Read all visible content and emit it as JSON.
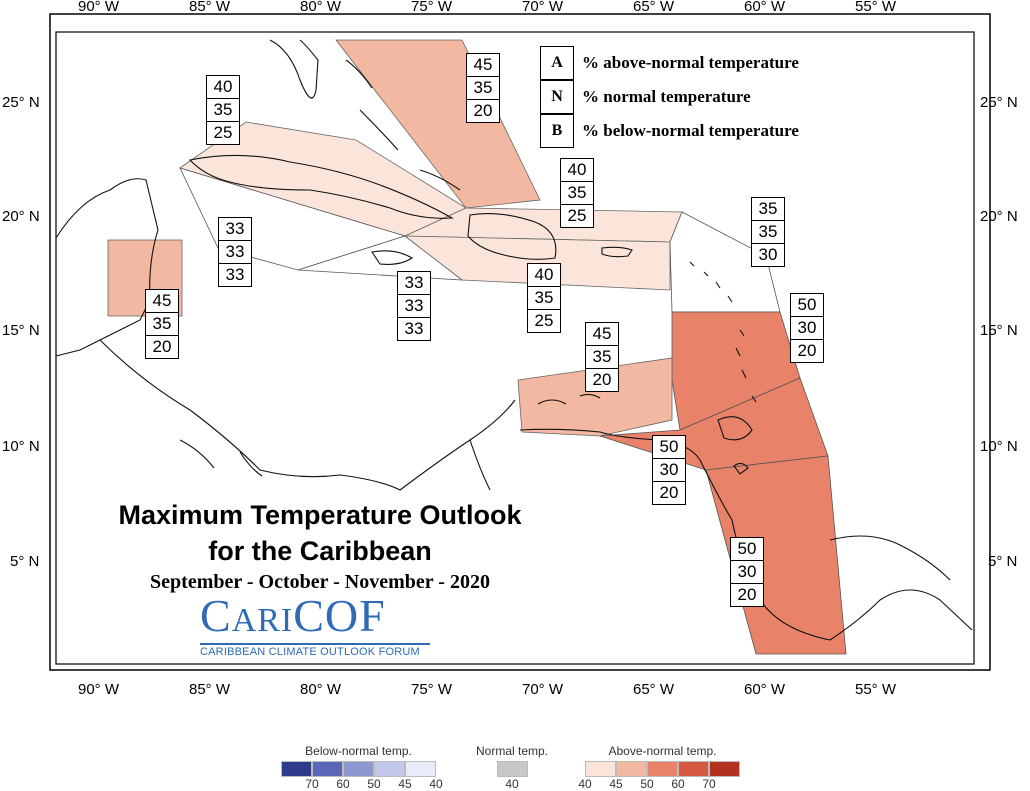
{
  "map": {
    "axis": {
      "lon_labels": [
        "90° W",
        "85° W",
        "80° W",
        "75° W",
        "70° W",
        "65° W",
        "60° W",
        "55° W"
      ],
      "lat_labels": [
        "25° N",
        "20° N",
        "15° N",
        "10° N",
        "5° N"
      ]
    },
    "key": [
      {
        "letter": "A",
        "text": "% above-normal temperature"
      },
      {
        "letter": "N",
        "text": "% normal temperature"
      },
      {
        "letter": "B",
        "text": "% below-normal temperature"
      }
    ],
    "regions": [
      {
        "name": "bahamas",
        "A": 45,
        "N": 35,
        "B": 20,
        "color": "#f2b8a1"
      },
      {
        "name": "cuba",
        "A": 40,
        "N": 35,
        "B": 25,
        "color": "#fbe5db"
      },
      {
        "name": "belize",
        "A": 45,
        "N": 35,
        "B": 20,
        "color": "#f2b8a1"
      },
      {
        "name": "cayman",
        "A": 33,
        "N": 33,
        "B": 33,
        "color": "#ffffff"
      },
      {
        "name": "jamaica",
        "A": 33,
        "N": 33,
        "B": 33,
        "color": "#ffffff"
      },
      {
        "name": "hispaniola-north",
        "A": 40,
        "N": 35,
        "B": 25,
        "color": "#fbe5db"
      },
      {
        "name": "hispaniola-south",
        "A": 40,
        "N": 35,
        "B": 25,
        "color": "#fbe5db"
      },
      {
        "name": "leeward-islands",
        "A": 35,
        "N": 35,
        "B": 30,
        "color": "#ffffff"
      },
      {
        "name": "windward-islands",
        "A": 50,
        "N": 30,
        "B": 20,
        "color": "#e8836a"
      },
      {
        "name": "abc-islands",
        "A": 45,
        "N": 35,
        "B": 20,
        "color": "#f2b8a1"
      },
      {
        "name": "trinidad-tobago",
        "A": 50,
        "N": 30,
        "B": 20,
        "color": "#e8836a"
      },
      {
        "name": "guianas",
        "A": 50,
        "N": 30,
        "B": 20,
        "color": "#e8836a"
      }
    ],
    "title_line1": "Maximum Temperature Outlook",
    "title_line2": "for the Caribbean",
    "period": "September - October - November - 2020",
    "logo_main": "CariCOF",
    "logo_sub": "CARIBBEAN CLIMATE OUTLOOK FORUM"
  },
  "legend": {
    "below": {
      "title": "Below-normal temp.",
      "ticks": [
        "70",
        "60",
        "50",
        "45",
        "40"
      ],
      "colors": [
        "#2e3a8c",
        "#5a66b8",
        "#8f97d1",
        "#c3c8ea",
        "#e9ecf8"
      ]
    },
    "normal": {
      "title": "Normal temp.",
      "ticks": [
        "40"
      ],
      "colors": [
        "#c8c8c8"
      ]
    },
    "above": {
      "title": "Above-normal temp.",
      "ticks": [
        "40",
        "45",
        "50",
        "60",
        "70"
      ],
      "colors": [
        "#fbe5db",
        "#f2b8a1",
        "#e8836a",
        "#d65a41",
        "#b3321f"
      ]
    }
  }
}
